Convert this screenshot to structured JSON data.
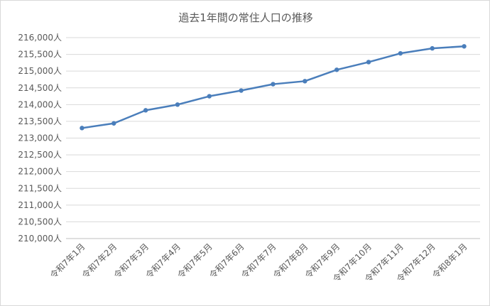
{
  "chart_data": {
    "type": "line",
    "title": "過去1年間の常住人口の推移",
    "xlabel": "",
    "ylabel": "",
    "categories": [
      "令和7年1月",
      "令和7年2月",
      "令和7年3月",
      "令和7年4月",
      "令和7年5月",
      "令和7年6月",
      "令和7年7月",
      "令和7年8月",
      "令和7年9月",
      "令和7年10月",
      "令和7年11月",
      "令和7年12月",
      "令和8年1月"
    ],
    "series": [
      {
        "values": [
          213300,
          213440,
          213830,
          214000,
          214250,
          214420,
          214610,
          214700,
          215040,
          215270,
          215530,
          215680,
          215740
        ],
        "color": "#4a7ebb"
      }
    ],
    "ylim": [
      210000,
      216000
    ],
    "yticks": [
      210000,
      210500,
      211000,
      211500,
      212000,
      212500,
      213000,
      213500,
      214000,
      214500,
      215000,
      215500,
      216000
    ],
    "ytick_labels": [
      "210,000人",
      "210,500人",
      "211,000人",
      "211,500人",
      "212,000人",
      "212,500人",
      "213,000人",
      "213,500人",
      "214,000人",
      "214,500人",
      "215,000人",
      "215,500人",
      "216,000人"
    ],
    "grid": true,
    "legend": "none"
  }
}
